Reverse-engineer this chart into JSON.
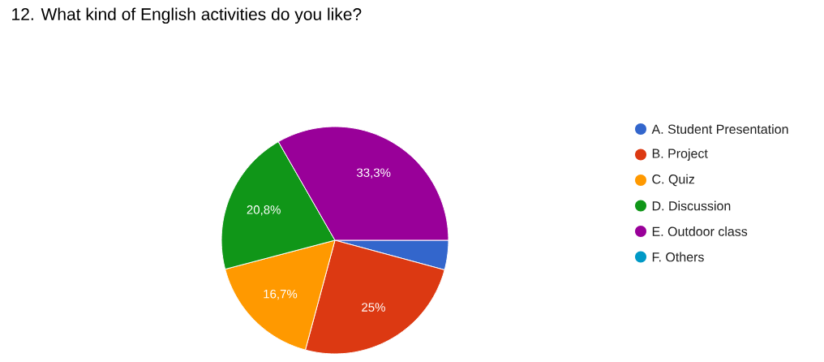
{
  "chart_data": {
    "type": "pie",
    "title": "12. What kind of English activities do you like?",
    "categories": [
      "A. Student Presentation",
      "B. Project",
      "C. Quiz",
      "D. Discussion",
      "E. Outdoor class",
      "F. Others"
    ],
    "values": [
      4.2,
      25,
      16.7,
      20.8,
      33.3,
      0
    ],
    "colors": [
      "#3366cc",
      "#dc3912",
      "#ff9900",
      "#109618",
      "#990099",
      "#0099c6"
    ],
    "value_labels": [
      null,
      "25%",
      "16,7%",
      "20,8%",
      "33,3%",
      null
    ],
    "legend": "right"
  }
}
